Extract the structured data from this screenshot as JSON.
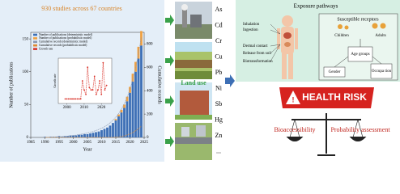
{
  "chart_data": [
    {
      "type": "bar",
      "title": "930 studies across 67 countries",
      "xlabel": "Year",
      "ylabel": "Number of publications",
      "y2label": "Cumulative records",
      "x": [
        1990,
        1991,
        1992,
        1993,
        1994,
        1995,
        1996,
        1997,
        1998,
        1999,
        2000,
        2001,
        2002,
        2003,
        2004,
        2005,
        2006,
        2007,
        2008,
        2009,
        2010,
        2011,
        2012,
        2013,
        2014,
        2015,
        2016,
        2017,
        2018,
        2019,
        2020,
        2021,
        2022,
        2023,
        2024
      ],
      "series": [
        {
          "name": "Number of publications (deterministic model)",
          "color": "#3d6fb5",
          "values": [
            1,
            0,
            1,
            1,
            1,
            2,
            1,
            2,
            2,
            3,
            3,
            3,
            4,
            4,
            5,
            5,
            6,
            7,
            8,
            9,
            11,
            13,
            15,
            18,
            22,
            26,
            32,
            38,
            45,
            55,
            68,
            85,
            100,
            120,
            140
          ]
        },
        {
          "name": "Number of publications (probabilistic model)",
          "color": "#f0a040",
          "values": [
            0,
            0,
            0,
            0,
            0,
            0,
            0,
            0,
            0,
            0,
            0,
            0,
            0,
            0,
            0,
            0,
            0,
            0,
            0,
            0,
            0,
            0,
            0,
            0,
            0,
            2,
            3,
            4,
            5,
            7,
            9,
            12,
            15,
            18,
            22
          ]
        },
        {
          "name": "Cumulative records (deterministic model)",
          "color": "#8a97b0",
          "axis": "y2",
          "values": [
            1,
            1,
            2,
            3,
            4,
            6,
            7,
            9,
            11,
            14,
            17,
            20,
            24,
            28,
            33,
            38,
            44,
            51,
            59,
            68,
            79,
            92,
            107,
            125,
            147,
            173,
            205,
            243,
            288,
            343,
            411,
            496,
            596,
            716,
            856
          ]
        },
        {
          "name": "Cumulative records (probabilistic model)",
          "color": "#e08a30",
          "axis": "y2",
          "values": [
            0,
            0,
            0,
            0,
            0,
            0,
            0,
            0,
            0,
            0,
            0,
            0,
            0,
            0,
            0,
            0,
            0,
            0,
            0,
            0,
            0,
            0,
            0,
            0,
            0,
            2,
            5,
            9,
            14,
            21,
            30,
            42,
            57,
            75,
            97
          ]
        }
      ],
      "xlim": [
        1985,
        2025
      ],
      "xticks": [
        1985,
        1990,
        1995,
        2000,
        2005,
        2010,
        2015,
        2020,
        2025
      ],
      "ylim": [
        0,
        160
      ],
      "yticks": [
        0,
        50,
        100,
        150
      ],
      "y2lim": [
        0,
        900
      ],
      "y2ticks": [
        0,
        200,
        400,
        600,
        800
      ]
    },
    {
      "type": "line",
      "ylabel": "Growth rate",
      "x": [
        1999,
        2000,
        2001,
        2002,
        2003,
        2004,
        2005,
        2006,
        2007,
        2008,
        2009,
        2010,
        2011,
        2012,
        2013,
        2014,
        2015,
        2016,
        2017,
        2018,
        2019,
        2020,
        2021,
        2022,
        2023
      ],
      "series": [
        {
          "name": "Growth rate",
          "color": "#d9342b",
          "values": [
            0.1,
            0.1,
            0.1,
            0.1,
            0.1,
            0.1,
            0.1,
            0.1,
            0.1,
            0.1,
            0.5,
            0.3,
            0.2,
            0.8,
            0.35,
            0.3,
            0.3,
            0.6,
            0.2,
            0.3,
            0.5,
            0.2,
            0.9,
            0.3,
            0.4
          ]
        }
      ],
      "xlim": [
        1995,
        2026
      ],
      "xticks": [
        2000,
        2010,
        2020
      ],
      "ylim": [
        0,
        1
      ]
    }
  ],
  "land_use": "Land use",
  "elements": [
    "As",
    "Cd",
    "Cr",
    "Cu",
    "Pb",
    "Ni",
    "Sb",
    "Hg",
    "Zn",
    "..."
  ],
  "exposure": {
    "title": "Exposure pathways",
    "pathways": [
      "Inhalation",
      "Ingestion",
      "Dermal contact",
      "Release from soil",
      "Biotransformation"
    ],
    "receptors": {
      "title": "Susceptible receptors",
      "groups": [
        "Children",
        "Adults"
      ],
      "factors": [
        "Age groups",
        "Gender",
        "Occupa tion"
      ]
    }
  },
  "health_risk": "HEALTH RISK",
  "assessment": [
    "Bioaccessibility",
    "Probability assessment"
  ]
}
